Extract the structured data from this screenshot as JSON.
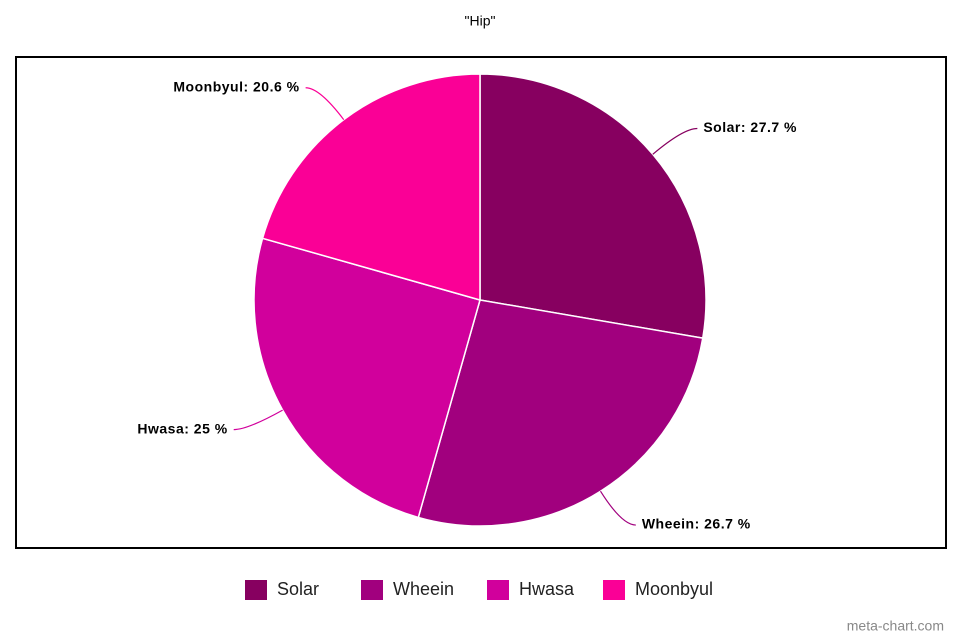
{
  "chart_data": {
    "type": "pie",
    "title": "\"Hip\"",
    "categories": [
      "Solar",
      "Wheein",
      "Hwasa",
      "Moonbyul"
    ],
    "values": [
      27.7,
      26.7,
      25,
      20.6
    ],
    "value_labels": [
      "Solar: 27.7 %",
      "Wheein: 26.7 %",
      "Hwasa: 25 %",
      "Moonbyul: 20.6 %"
    ],
    "colors": [
      "#870060",
      "#a1007e",
      "#d1009c",
      "#fa0096"
    ],
    "legend": "bottom",
    "watermark": "meta-chart.com"
  }
}
